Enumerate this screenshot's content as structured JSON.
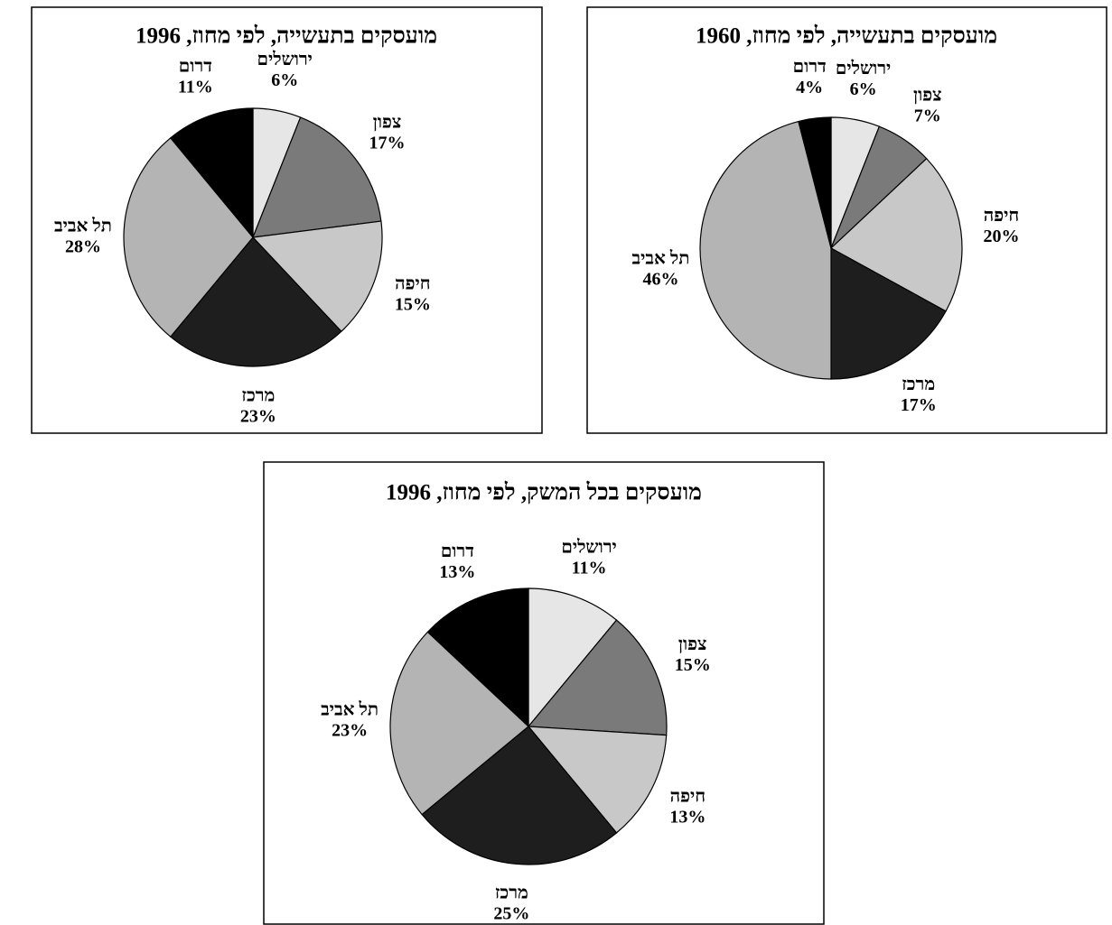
{
  "chart_data": [
    {
      "type": "pie",
      "title": "מועסקים בתעשייה, לפי מחוז, 1996",
      "categories": [
        "ירושלים",
        "צפון",
        "חיפה",
        "מרכז",
        "תל אביב",
        "דרום"
      ],
      "values": [
        6,
        17,
        15,
        23,
        28,
        11
      ],
      "value_labels": [
        "6%",
        "17%",
        "15%",
        "23%",
        "28%",
        "11%"
      ],
      "colors": [
        "#e6e6e6",
        "#7a7a7a",
        "#c8c8c8",
        "#1e1e1e",
        "#b4b4b4",
        "#000000"
      ]
    },
    {
      "type": "pie",
      "title": "מועסקים בתעשייה, לפי מחוז, 1960",
      "categories": [
        "ירושלים",
        "צפון",
        "חיפה",
        "מרכז",
        "תל אביב",
        "דרום"
      ],
      "values": [
        6,
        7,
        20,
        17,
        46,
        4
      ],
      "value_labels": [
        "6%",
        "7%",
        "20%",
        "17%",
        "46%",
        "4%"
      ],
      "colors": [
        "#e6e6e6",
        "#7a7a7a",
        "#c8c8c8",
        "#1e1e1e",
        "#b4b4b4",
        "#000000"
      ]
    },
    {
      "type": "pie",
      "title": "מועסקים בכל המשק, לפי מחוז, 1996",
      "categories": [
        "ירושלים",
        "צפון",
        "חיפה",
        "מרכז",
        "תל אביב",
        "דרום"
      ],
      "values": [
        11,
        15,
        13,
        25,
        23,
        13
      ],
      "value_labels": [
        "11%",
        "15%",
        "13%",
        "25%",
        "23%",
        "13%"
      ],
      "colors": [
        "#e6e6e6",
        "#7a7a7a",
        "#c8c8c8",
        "#1e1e1e",
        "#b4b4b4",
        "#000000"
      ]
    }
  ]
}
